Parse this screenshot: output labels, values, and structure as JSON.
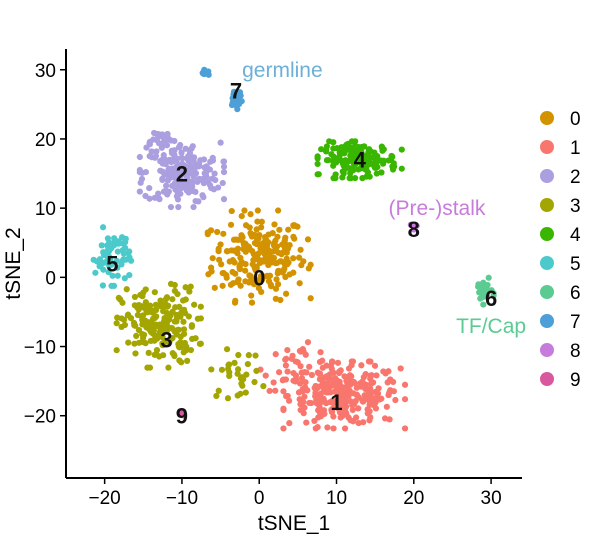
{
  "chart_data": {
    "type": "scatter",
    "xlabel": "tSNE_1",
    "ylabel": "tSNE_2",
    "xlim": [
      -25,
      34
    ],
    "ylim": [
      -29,
      33
    ],
    "xticks": [
      -20,
      -10,
      0,
      10,
      20,
      30
    ],
    "yticks": [
      -20,
      -10,
      0,
      10,
      20,
      30
    ],
    "xtick_labels": [
      "−20",
      "−10",
      "0",
      "10",
      "20",
      "30"
    ],
    "ytick_labels": [
      "−20",
      "−10",
      "0",
      "10",
      "20",
      "30"
    ],
    "grid": false,
    "legend_position": "right",
    "clusters": [
      {
        "id": "0",
        "color": "#D39200",
        "label_pos": [
          0,
          0
        ],
        "blobs": [
          {
            "cx": 0,
            "cy": 3,
            "sx": 5.5,
            "sy": 5.5,
            "n": 220
          }
        ]
      },
      {
        "id": "1",
        "color": "#F8766D",
        "label_pos": [
          10,
          -18
        ],
        "blobs": [
          {
            "cx": 11,
            "cy": -17,
            "sx": 6.5,
            "sy": 4,
            "n": 260
          },
          {
            "cx": 5,
            "cy": -13,
            "sx": 4,
            "sy": 3,
            "n": 40
          }
        ]
      },
      {
        "id": "2",
        "color": "#AB9FE0",
        "label_pos": [
          -10,
          15
        ],
        "blobs": [
          {
            "cx": -10,
            "cy": 15,
            "sx": 4.5,
            "sy": 4,
            "n": 200
          },
          {
            "cx": -13,
            "cy": 20,
            "sx": 2,
            "sy": 1.2,
            "n": 25
          }
        ]
      },
      {
        "id": "3",
        "color": "#A3A500",
        "label_pos": [
          -12,
          -9
        ],
        "blobs": [
          {
            "cx": -13,
            "cy": -7,
            "sx": 4.5,
            "sy": 5,
            "n": 200
          },
          {
            "cx": -3,
            "cy": -14,
            "sx": 3,
            "sy": 3,
            "n": 30
          }
        ]
      },
      {
        "id": "4",
        "color": "#39B600",
        "label_pos": [
          13,
          17
        ],
        "blobs": [
          {
            "cx": 13,
            "cy": 17,
            "sx": 4.5,
            "sy": 2.2,
            "n": 160
          }
        ]
      },
      {
        "id": "5",
        "color": "#4CCACB",
        "label_pos": [
          -19,
          2
        ],
        "blobs": [
          {
            "cx": -19,
            "cy": 3,
            "sx": 2,
            "sy": 3.5,
            "n": 70
          }
        ]
      },
      {
        "id": "6",
        "color": "#5CCB92",
        "label_pos": [
          30,
          -3
        ],
        "blobs": [
          {
            "cx": 29,
            "cy": -2,
            "sx": 1.1,
            "sy": 1.6,
            "n": 25
          }
        ]
      },
      {
        "id": "7",
        "color": "#4C9FD7",
        "label_pos": [
          -3,
          27
        ],
        "blobs": [
          {
            "cx": -3,
            "cy": 26,
            "sx": 0.8,
            "sy": 1.4,
            "n": 22
          },
          {
            "cx": -7,
            "cy": 29.5,
            "sx": 0.5,
            "sy": 0.4,
            "n": 8
          }
        ]
      },
      {
        "id": "8",
        "color": "#C77CDB",
        "label_pos": [
          20,
          7
        ],
        "blobs": [
          {
            "cx": 20,
            "cy": 7,
            "sx": 0.6,
            "sy": 0.5,
            "n": 6
          }
        ]
      },
      {
        "id": "9",
        "color": "#D9579E",
        "label_pos": [
          -10,
          -20
        ],
        "blobs": [
          {
            "cx": -10,
            "cy": -19.5,
            "sx": 0.4,
            "sy": 0.4,
            "n": 4
          }
        ]
      }
    ],
    "annotations": [
      {
        "text": "germline",
        "x": 3,
        "y": 30,
        "color": "#6CB0D8"
      },
      {
        "text": "(Pre-)stalk",
        "x": 23,
        "y": 10,
        "color": "#C77CDB"
      },
      {
        "text": "TF/Cap",
        "x": 30,
        "y": -7,
        "color": "#5CCB92"
      }
    ]
  }
}
